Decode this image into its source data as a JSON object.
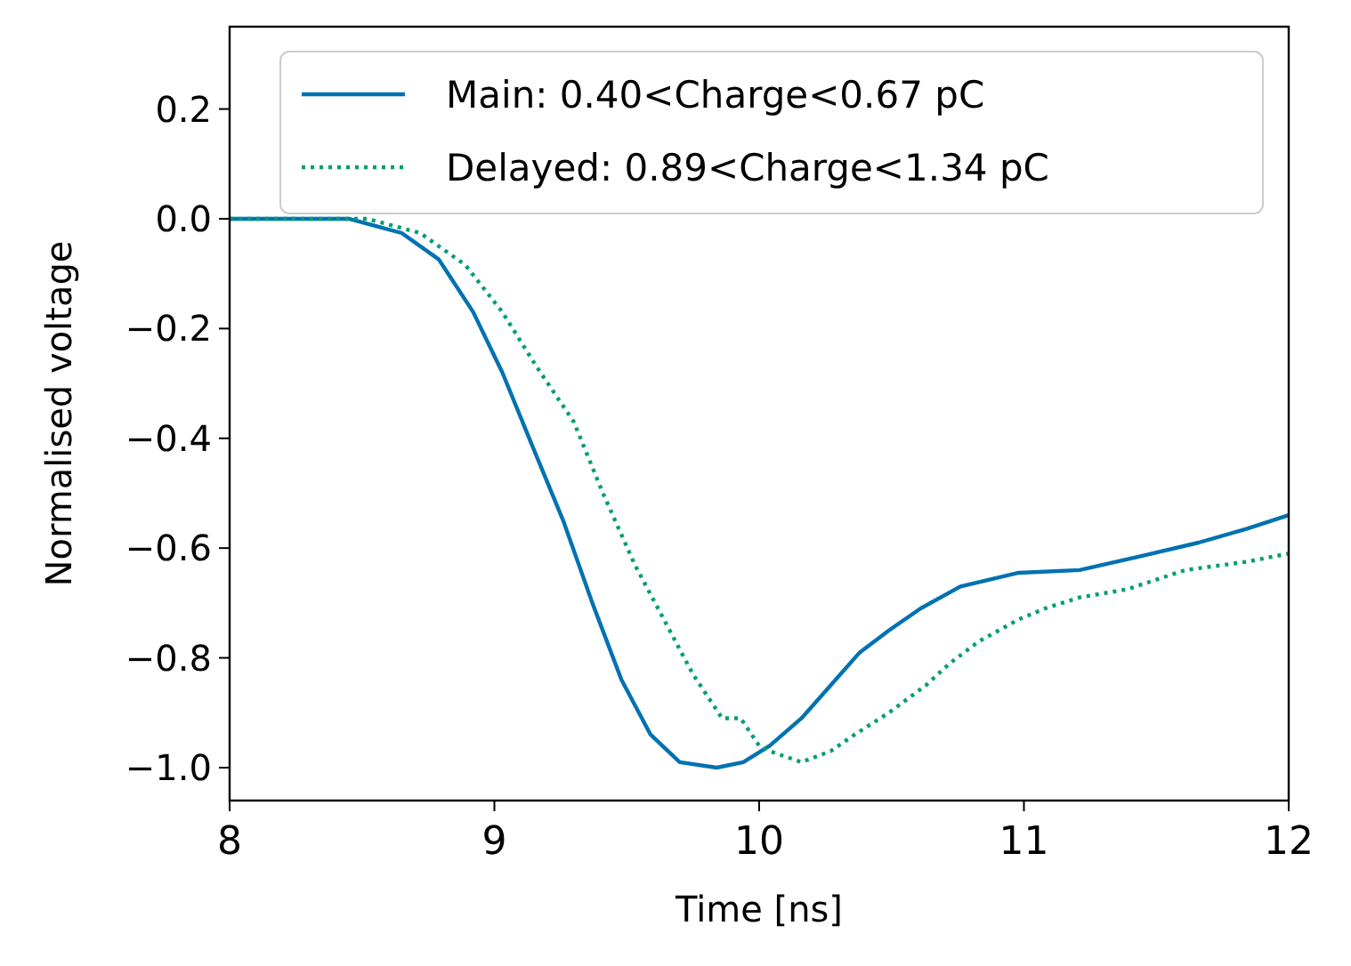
{
  "chart_data": {
    "type": "line",
    "xlabel": "Time [ns]",
    "ylabel": "Normalised voltage",
    "xlim": [
      8,
      12
    ],
    "xticks": [
      8,
      9,
      10,
      11,
      12
    ],
    "ylim": [
      -1.06,
      0.35
    ],
    "yticks": [
      {
        "value": -1.0,
        "label": "−1.0"
      },
      {
        "value": -0.8,
        "label": "−0.8"
      },
      {
        "value": -0.6,
        "label": "−0.6"
      },
      {
        "value": -0.4,
        "label": "−0.4"
      },
      {
        "value": -0.2,
        "label": "−0.2"
      },
      {
        "value": 0.0,
        "label": "0.0"
      },
      {
        "value": 0.2,
        "label": "0.2"
      }
    ],
    "grid": false,
    "legend": "top",
    "marker": "none",
    "series": [
      {
        "name": "Main: 0.40<Charge<0.67 pC",
        "color": "#0072b2",
        "line_style": "solid",
        "x": [
          8,
          8.45,
          8.65,
          8.79,
          8.92,
          9.03,
          9.14,
          9.26,
          9.37,
          9.48,
          9.59,
          9.7,
          9.84,
          9.94,
          10.04,
          10.16,
          10.27,
          10.38,
          10.49,
          10.61,
          10.76,
          10.98,
          11.21,
          11.44,
          11.66,
          11.84,
          12
        ],
        "values": [
          0,
          0,
          -0.026,
          -0.074,
          -0.17,
          -0.28,
          -0.41,
          -0.55,
          -0.7,
          -0.84,
          -0.94,
          -0.99,
          -1.0,
          -0.99,
          -0.96,
          -0.91,
          -0.85,
          -0.79,
          -0.75,
          -0.71,
          -0.67,
          -0.645,
          -0.64,
          -0.615,
          -0.59,
          -0.565,
          -0.54
        ]
      },
      {
        "name": "Delayed: 0.89<Charge<1.34 pC",
        "color": "#009e73",
        "line_style": "dotted",
        "x": [
          8,
          8.52,
          8.72,
          8.89,
          9.03,
          9.16,
          9.3,
          9.41,
          9.53,
          9.64,
          9.75,
          9.86,
          9.93,
          10.0,
          10.04,
          10.16,
          10.27,
          10.36,
          10.49,
          10.63,
          10.72,
          10.83,
          10.98,
          11.08,
          11.21,
          11.39,
          11.61,
          11.84,
          12
        ],
        "values": [
          0,
          0,
          -0.026,
          -0.084,
          -0.17,
          -0.27,
          -0.37,
          -0.5,
          -0.63,
          -0.73,
          -0.83,
          -0.91,
          -0.91,
          -0.96,
          -0.97,
          -0.99,
          -0.97,
          -0.94,
          -0.9,
          -0.85,
          -0.81,
          -0.77,
          -0.73,
          -0.71,
          -0.69,
          -0.675,
          -0.64,
          -0.625,
          -0.61
        ]
      }
    ]
  }
}
